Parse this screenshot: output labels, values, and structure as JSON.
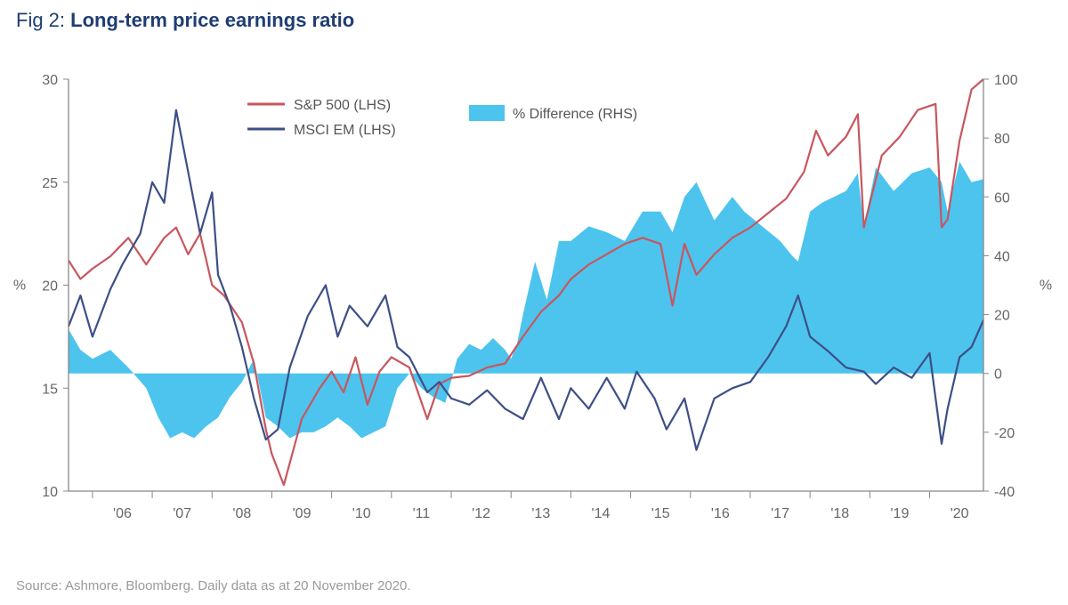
{
  "figure": {
    "number": "Fig 2:",
    "title": "Long-term price earnings ratio"
  },
  "source": "Source: Ashmore, Bloomberg. Daily data as at 20 November 2020.",
  "colors": {
    "sp500": "#c9565e",
    "msci_em": "#3e4f86",
    "difference": "#4cc4ee",
    "title": "#1f3d73"
  },
  "chart_data": {
    "type": "line",
    "x_unit": "year",
    "x_range": [
      2005.6,
      2020.9
    ],
    "categories": [
      "'06",
      "'07",
      "'08",
      "'09",
      "'10",
      "'11",
      "'12",
      "'13",
      "'14",
      "'15",
      "'16",
      "'17",
      "'18",
      "'19",
      "'20"
    ],
    "y_left": {
      "label": "%",
      "range": [
        10,
        30
      ],
      "ticks": [
        10,
        15,
        20,
        25,
        30
      ]
    },
    "y_right": {
      "label": "%",
      "range": [
        -40,
        100
      ],
      "ticks": [
        -40,
        -20,
        0,
        20,
        40,
        60,
        80,
        100
      ]
    },
    "legend": [
      "S&P 500 (LHS)",
      "MSCI EM (LHS)",
      "% Difference (RHS)"
    ],
    "series": [
      {
        "name": "S&P 500 (LHS)",
        "axis": "left",
        "type": "line",
        "x": [
          2005.6,
          2005.8,
          2006.0,
          2006.3,
          2006.6,
          2006.9,
          2007.2,
          2007.4,
          2007.6,
          2007.8,
          2008.0,
          2008.2,
          2008.5,
          2008.7,
          2008.9,
          2009.0,
          2009.2,
          2009.5,
          2009.8,
          2010.0,
          2010.2,
          2010.4,
          2010.6,
          2010.8,
          2011.0,
          2011.3,
          2011.6,
          2011.8,
          2012.0,
          2012.3,
          2012.6,
          2012.9,
          2013.2,
          2013.5,
          2013.8,
          2014.0,
          2014.3,
          2014.6,
          2014.9,
          2015.2,
          2015.5,
          2015.7,
          2015.9,
          2016.1,
          2016.4,
          2016.7,
          2017.0,
          2017.3,
          2017.6,
          2017.9,
          2018.1,
          2018.3,
          2018.6,
          2018.8,
          2018.9,
          2019.2,
          2019.5,
          2019.8,
          2020.1,
          2020.2,
          2020.3,
          2020.5,
          2020.7,
          2020.9
        ],
        "values": [
          21.2,
          20.3,
          20.8,
          21.4,
          22.3,
          21.0,
          22.3,
          22.8,
          21.5,
          22.5,
          20.0,
          19.5,
          18.2,
          16.2,
          13.0,
          11.8,
          10.3,
          13.5,
          15.0,
          15.8,
          14.8,
          16.5,
          14.2,
          15.8,
          16.5,
          16.0,
          13.5,
          15.2,
          15.5,
          15.6,
          16.0,
          16.2,
          17.5,
          18.7,
          19.5,
          20.3,
          21.0,
          21.5,
          22.0,
          22.3,
          22.0,
          19.0,
          22.0,
          20.5,
          21.5,
          22.3,
          22.8,
          23.5,
          24.2,
          25.5,
          27.5,
          26.3,
          27.2,
          28.3,
          22.8,
          26.3,
          27.2,
          28.5,
          28.8,
          22.8,
          23.2,
          27.0,
          29.5,
          30.0
        ]
      },
      {
        "name": "MSCI EM (LHS)",
        "axis": "left",
        "type": "line",
        "x": [
          2005.6,
          2005.8,
          2006.0,
          2006.3,
          2006.5,
          2006.8,
          2007.0,
          2007.2,
          2007.4,
          2007.6,
          2007.8,
          2008.0,
          2008.1,
          2008.3,
          2008.5,
          2008.7,
          2008.9,
          2009.1,
          2009.3,
          2009.6,
          2009.9,
          2010.1,
          2010.3,
          2010.6,
          2010.9,
          2011.1,
          2011.3,
          2011.6,
          2011.8,
          2012.0,
          2012.3,
          2012.6,
          2012.9,
          2013.2,
          2013.5,
          2013.8,
          2014.0,
          2014.3,
          2014.6,
          2014.9,
          2015.1,
          2015.4,
          2015.6,
          2015.9,
          2016.1,
          2016.4,
          2016.7,
          2017.0,
          2017.3,
          2017.6,
          2017.8,
          2018.0,
          2018.3,
          2018.6,
          2018.9,
          2019.1,
          2019.4,
          2019.7,
          2020.0,
          2020.2,
          2020.3,
          2020.5,
          2020.7,
          2020.9
        ],
        "values": [
          18.0,
          19.5,
          17.5,
          19.8,
          21.0,
          22.5,
          25.0,
          24.0,
          28.5,
          25.5,
          22.5,
          24.5,
          20.5,
          19.0,
          17.0,
          14.5,
          12.5,
          13.0,
          16.0,
          18.5,
          20.0,
          17.5,
          19.0,
          18.0,
          19.5,
          17.0,
          16.5,
          14.8,
          15.3,
          14.5,
          14.2,
          14.9,
          14.0,
          13.5,
          15.5,
          13.5,
          15.0,
          14.0,
          15.5,
          14.0,
          15.8,
          14.5,
          13.0,
          14.5,
          12.0,
          14.5,
          15.0,
          15.3,
          16.5,
          18.0,
          19.5,
          17.5,
          16.8,
          16.0,
          15.8,
          15.2,
          16.0,
          15.5,
          16.7,
          12.3,
          14.0,
          16.5,
          17.0,
          18.3
        ]
      },
      {
        "name": "% Difference (RHS)",
        "axis": "right",
        "type": "area",
        "x": [
          2005.6,
          2005.8,
          2006.0,
          2006.3,
          2006.6,
          2006.9,
          2007.1,
          2007.3,
          2007.5,
          2007.7,
          2007.9,
          2008.1,
          2008.3,
          2008.5,
          2008.7,
          2008.9,
          2009.1,
          2009.3,
          2009.5,
          2009.7,
          2009.9,
          2010.1,
          2010.3,
          2010.5,
          2010.7,
          2010.9,
          2011.1,
          2011.3,
          2011.5,
          2011.7,
          2011.9,
          2012.1,
          2012.3,
          2012.5,
          2012.7,
          2012.9,
          2013.0,
          2013.1,
          2013.2,
          2013.4,
          2013.6,
          2013.8,
          2014.0,
          2014.3,
          2014.6,
          2014.9,
          2015.2,
          2015.5,
          2015.7,
          2015.9,
          2016.1,
          2016.4,
          2016.7,
          2016.9,
          2017.2,
          2017.5,
          2017.7,
          2017.8,
          2018.0,
          2018.2,
          2018.4,
          2018.6,
          2018.8,
          2018.9,
          2019.1,
          2019.4,
          2019.7,
          2020.0,
          2020.2,
          2020.3,
          2020.5,
          2020.7,
          2020.9
        ],
        "values": [
          15,
          8,
          5,
          8,
          2,
          -5,
          -15,
          -22,
          -20,
          -22,
          -18,
          -15,
          -8,
          -3,
          5,
          -15,
          -18,
          -22,
          -20,
          -20,
          -18,
          -15,
          -18,
          -22,
          -20,
          -18,
          -5,
          0,
          -5,
          -8,
          -10,
          5,
          10,
          8,
          12,
          8,
          5,
          10,
          20,
          38,
          25,
          45,
          45,
          50,
          48,
          45,
          55,
          55,
          48,
          60,
          65,
          52,
          60,
          55,
          50,
          45,
          40,
          38,
          55,
          58,
          60,
          62,
          68,
          50,
          70,
          62,
          68,
          70,
          65,
          55,
          72,
          65,
          66
        ]
      }
    ]
  }
}
